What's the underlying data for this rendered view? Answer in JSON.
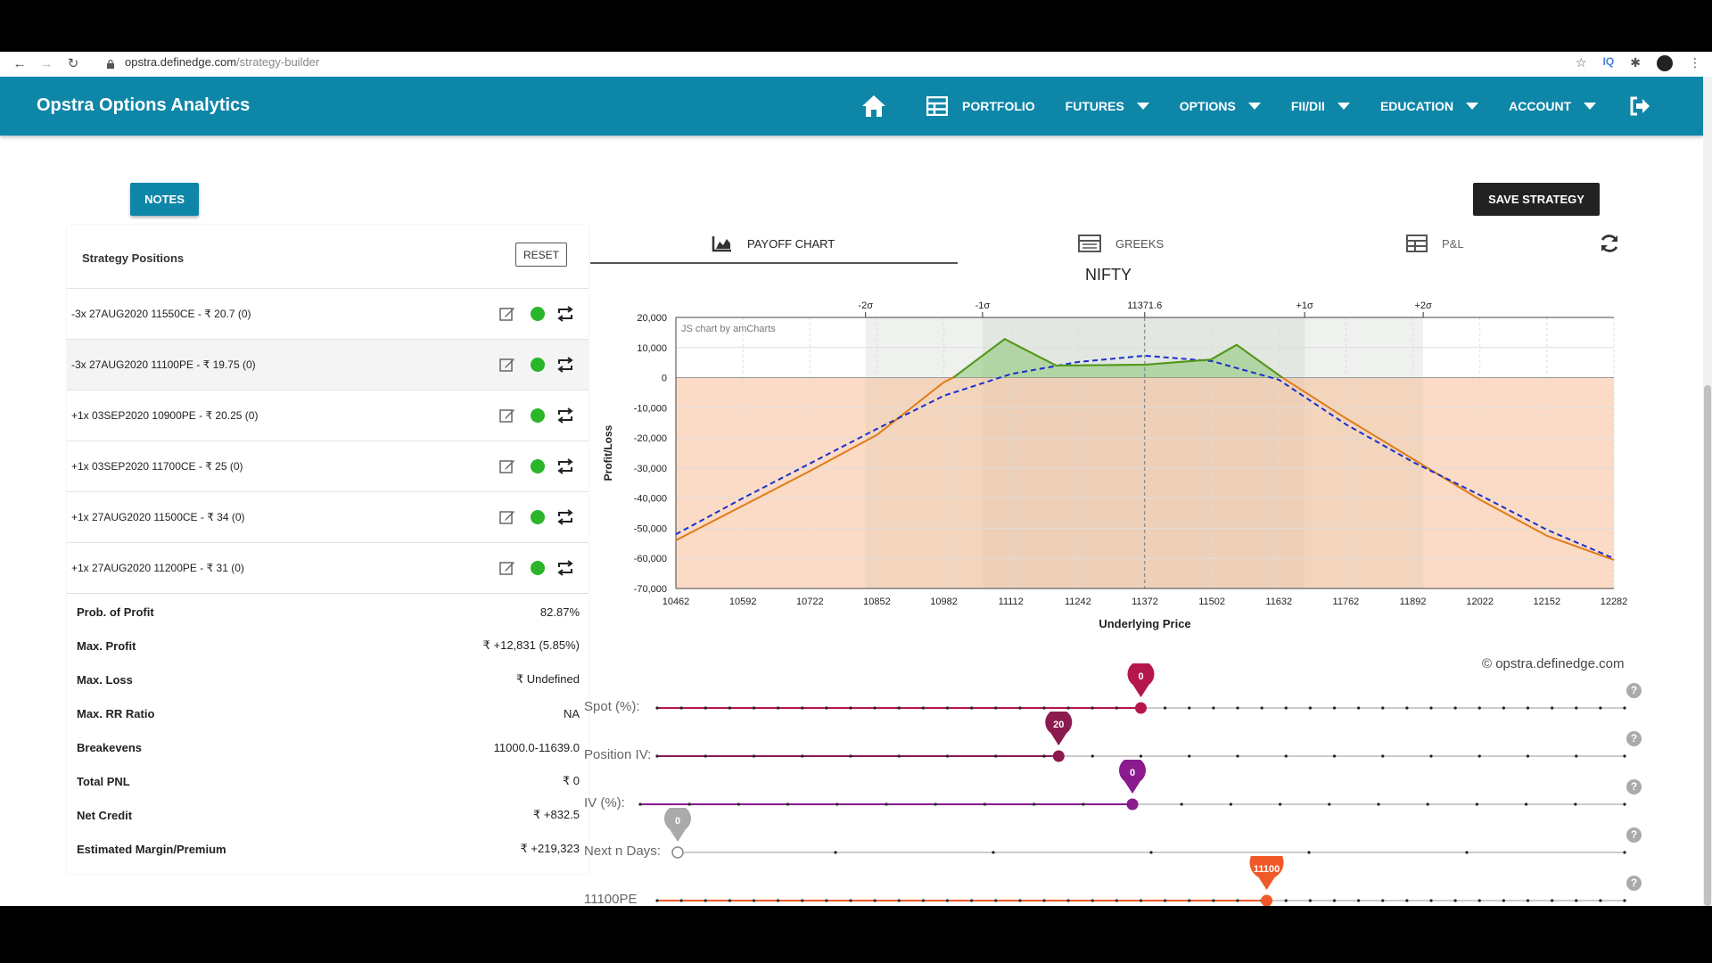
{
  "browser": {
    "url_host": "opstra.definedge.com",
    "url_path": "/strategy-builder"
  },
  "app": {
    "title": "Opstra Options Analytics"
  },
  "nav": {
    "portfolio": "PORTFOLIO",
    "futures": "FUTURES",
    "options": "OPTIONS",
    "fii_dii": "FII/DII",
    "education": "EDUCATION",
    "account": "ACCOUNT"
  },
  "buttons": {
    "notes": "NOTES",
    "save_strategy": "SAVE STRATEGY",
    "reset": "RESET"
  },
  "positions_panel": {
    "title": "Strategy Positions",
    "positions": [
      {
        "label": "-3x 27AUG2020 11550CE - ₹ 20.7   (0)",
        "active": true
      },
      {
        "label": "-3x 27AUG2020 11100PE - ₹ 19.75   (0)",
        "active": true
      },
      {
        "label": "+1x 03SEP2020 10900PE - ₹ 20.25   (0)",
        "active": true
      },
      {
        "label": "+1x 03SEP2020 11700CE - ₹ 25   (0)",
        "active": true
      },
      {
        "label": "+1x 27AUG2020 11500CE - ₹ 34   (0)",
        "active": true
      },
      {
        "label": "+1x 27AUG2020 11200PE - ₹ 31   (0)",
        "active": true
      }
    ]
  },
  "stats": [
    {
      "label": "Prob. of Profit",
      "value": "82.87%"
    },
    {
      "label": "Max. Profit",
      "value": "₹ +12,831 (5.85%)"
    },
    {
      "label": "Max. Loss",
      "value": "₹ Undefined"
    },
    {
      "label": "Max. RR Ratio",
      "value": "NA"
    },
    {
      "label": "Breakevens",
      "value": "11000.0-11639.0"
    },
    {
      "label": "Total PNL",
      "value": "₹ 0"
    },
    {
      "label": "Net Credit",
      "value": "₹ +832.5"
    },
    {
      "label": "Estimated Margin/Premium",
      "value": "₹ +219,323"
    }
  ],
  "tabs": {
    "payoff": "PAYOFF CHART",
    "greeks": "GREEKS",
    "pl": "P&L"
  },
  "chart_data": {
    "type": "line",
    "title": "NIFTY",
    "watermark": "JS chart by amCharts",
    "xlabel": "Underlying Price",
    "ylabel": "Profit/Loss",
    "x_ticks": [
      10462,
      10592,
      10722,
      10852,
      10982,
      11112,
      11242,
      11372,
      11502,
      11632,
      11762,
      11892,
      12022,
      12152,
      12282
    ],
    "y_ticks": [
      "20,000",
      "10,000",
      "0",
      "-10,000",
      "-20,000",
      "-30,000",
      "-40,000",
      "-50,000",
      "-60,000",
      "-70,000"
    ],
    "ylim": [
      -70000,
      20000
    ],
    "xlim": [
      10462,
      12282
    ],
    "top_axis": [
      {
        "label": "-2σ",
        "x": 10830
      },
      {
        "label": "-1σ",
        "x": 11057
      },
      {
        "label": "11371.6",
        "x": 11371.6
      },
      {
        "label": "+1σ",
        "x": 11682
      },
      {
        "label": "+2σ",
        "x": 11912
      }
    ],
    "sigma_bands": [
      [
        10830,
        11912
      ],
      [
        11057,
        11682
      ]
    ],
    "series": [
      {
        "style": "expiry",
        "color": "#e07b17",
        "x": [
          10462,
          10592,
          10722,
          10852,
          10982,
          11000,
          11100,
          11200,
          11372,
          11500,
          11550,
          11639,
          11762,
          11892,
          12022,
          12152,
          12282
        ],
        "values": [
          -54000,
          -42500,
          -31000,
          -19000,
          -1500,
          0,
          12831,
          4000,
          4300,
          6000,
          10900,
          0,
          -13500,
          -27000,
          -40500,
          -52500,
          -60500
        ]
      },
      {
        "style": "target",
        "color": "#1a2fcc",
        "x": [
          10462,
          10592,
          10722,
          10852,
          10982,
          11112,
          11242,
          11372,
          11502,
          11632,
          11762,
          11892,
          12022,
          12152,
          12282
        ],
        "values": [
          -52000,
          -40000,
          -28500,
          -17000,
          -6000,
          1200,
          5200,
          7300,
          5500,
          -700,
          -15500,
          -28000,
          -39000,
          -50500,
          -60000
        ]
      }
    ]
  },
  "copyright": "© opstra.definedge.com",
  "sliders": [
    {
      "label": "Spot (%):",
      "value": "0",
      "color": "#b5174b",
      "fraction": 0.5
    },
    {
      "label": "Position IV:",
      "value": "20",
      "color": "#8b1a4e",
      "fraction": 0.415
    },
    {
      "label": "IV (%):",
      "value": "0",
      "color": "#8a1a8e",
      "fraction": 0.5
    },
    {
      "label": "Next n Days:",
      "value": "0",
      "color": "#aaaaaa",
      "fraction": 0.0
    },
    {
      "label": "11100PE",
      "value": "11100",
      "color": "#f05a28",
      "fraction": 0.63
    }
  ]
}
